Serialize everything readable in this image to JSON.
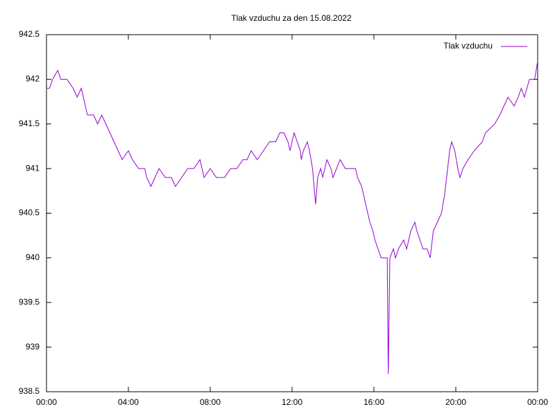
{
  "chart_data": {
    "type": "line",
    "title": "Tlak vzduchu za den 15.08.2022",
    "x": [
      0,
      0.15,
      0.3,
      0.55,
      0.7,
      1.0,
      1.3,
      1.5,
      1.7,
      1.9,
      2.0,
      2.3,
      2.5,
      2.7,
      2.9,
      3.1,
      3.3,
      3.5,
      3.7,
      4.0,
      4.2,
      4.5,
      4.8,
      4.9,
      5.1,
      5.3,
      5.5,
      5.8,
      6.1,
      6.3,
      6.6,
      6.9,
      7.2,
      7.5,
      7.7,
      8.0,
      8.3,
      8.7,
      9.0,
      9.3,
      9.6,
      9.8,
      10.0,
      10.3,
      10.6,
      10.9,
      11.2,
      11.4,
      11.6,
      11.8,
      11.9,
      12.1,
      12.25,
      12.4,
      12.45,
      12.55,
      12.75,
      12.85,
      13.0,
      13.15,
      13.25,
      13.4,
      13.5,
      13.6,
      13.7,
      13.9,
      14.0,
      14.35,
      14.6,
      15.1,
      15.2,
      15.4,
      15.6,
      15.8,
      15.95,
      16.05,
      16.35,
      16.65,
      16.7,
      16.78,
      16.95,
      17.05,
      17.2,
      17.45,
      17.6,
      17.8,
      18.0,
      18.1,
      18.25,
      18.4,
      18.6,
      18.75,
      18.9,
      19.1,
      19.3,
      19.45,
      19.6,
      19.7,
      19.8,
      19.95,
      20.1,
      20.2,
      20.35,
      20.6,
      20.9,
      21.3,
      21.45,
      21.9,
      22.15,
      22.35,
      22.55,
      22.85,
      23.05,
      23.2,
      23.35,
      23.6,
      23.85,
      24.0
    ],
    "series": [
      {
        "name": "Tlak vzduchu",
        "color": "#9400d3",
        "values": [
          941.9,
          941.9,
          942.0,
          942.1,
          942.0,
          942.0,
          941.9,
          941.8,
          941.9,
          941.7,
          941.6,
          941.6,
          941.5,
          941.6,
          941.5,
          941.4,
          941.3,
          941.2,
          941.1,
          941.2,
          941.1,
          941.0,
          941.0,
          940.9,
          940.8,
          940.9,
          941.0,
          940.9,
          940.9,
          940.8,
          940.9,
          941.0,
          941.0,
          941.1,
          940.9,
          941.0,
          940.9,
          940.9,
          941.0,
          941.0,
          941.1,
          941.1,
          941.2,
          941.1,
          941.2,
          941.3,
          941.3,
          941.4,
          941.4,
          941.3,
          941.2,
          941.4,
          941.3,
          941.2,
          941.1,
          941.2,
          941.3,
          941.2,
          941.0,
          940.6,
          940.9,
          941.0,
          940.9,
          941.0,
          941.1,
          941.0,
          940.9,
          941.1,
          941.0,
          941.0,
          940.9,
          940.8,
          940.6,
          940.4,
          940.3,
          940.2,
          940.0,
          940.0,
          938.7,
          940.0,
          940.1,
          940.0,
          940.1,
          940.2,
          940.1,
          940.3,
          940.4,
          940.3,
          940.2,
          940.1,
          940.1,
          940.0,
          940.3,
          940.4,
          940.5,
          940.7,
          941.0,
          941.2,
          941.3,
          941.2,
          941.0,
          940.9,
          941.0,
          941.1,
          941.2,
          941.3,
          941.4,
          941.5,
          941.6,
          941.7,
          941.8,
          941.7,
          941.8,
          941.9,
          941.8,
          942.0,
          942.0,
          942.2
        ]
      }
    ],
    "xlim": [
      0,
      24
    ],
    "xticks": [
      {
        "value": 0,
        "label": "00:00"
      },
      {
        "value": 4,
        "label": "04:00"
      },
      {
        "value": 8,
        "label": "08:00"
      },
      {
        "value": 12,
        "label": "12:00"
      },
      {
        "value": 16,
        "label": "16:00"
      },
      {
        "value": 20,
        "label": "20:00"
      },
      {
        "value": 24,
        "label": "00:00"
      }
    ],
    "ylim": [
      938.5,
      942.5
    ],
    "yticks": [
      938.5,
      939,
      939.5,
      940,
      940.5,
      941,
      941.5,
      942,
      942.5
    ],
    "grid": false,
    "legend": "top-right"
  }
}
